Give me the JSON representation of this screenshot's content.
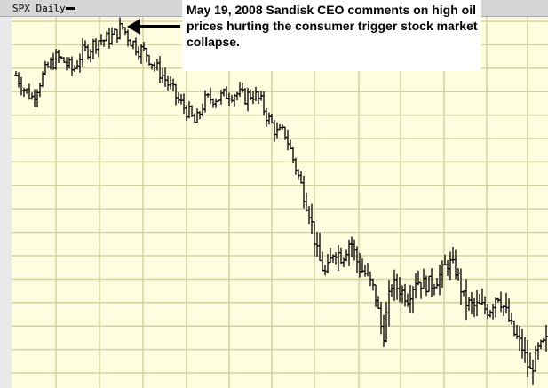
{
  "header": {
    "title": "SPX Daily"
  },
  "annotation": {
    "text": "May 19, 2008  Sandisk CEO comments on high oil prices hurting the consumer trigger stock market collapse."
  },
  "colors": {
    "background": "#fffde0",
    "grid": "#d6d2a0",
    "bars": "#000000",
    "header": "#d6d6d6"
  },
  "chart_data": {
    "type": "ohlc-bar",
    "title": "SPX Daily",
    "grid": true,
    "ylim": [
      800,
      1460
    ],
    "closes": [
      1354,
      1330,
      1314,
      1346,
      1370,
      1386,
      1378,
      1362,
      1394,
      1402,
      1418,
      1418,
      1426,
      1442,
      1418,
      1402,
      1394,
      1370,
      1354,
      1330,
      1306,
      1290,
      1266,
      1306,
      1314,
      1314,
      1322,
      1322,
      1314,
      1322,
      1306,
      1274,
      1250,
      1250,
      1202,
      1154,
      1106,
      1026,
      994,
      1042,
      1026,
      1058,
      1010,
      994,
      962,
      882,
      978,
      970,
      954,
      986,
      978,
      978,
      994,
      1018,
      1002,
      946,
      938,
      938,
      930,
      962,
      930,
      890,
      866,
      818,
      858,
      874
    ],
    "annotation_target": "peak (May 19, 2008)"
  }
}
